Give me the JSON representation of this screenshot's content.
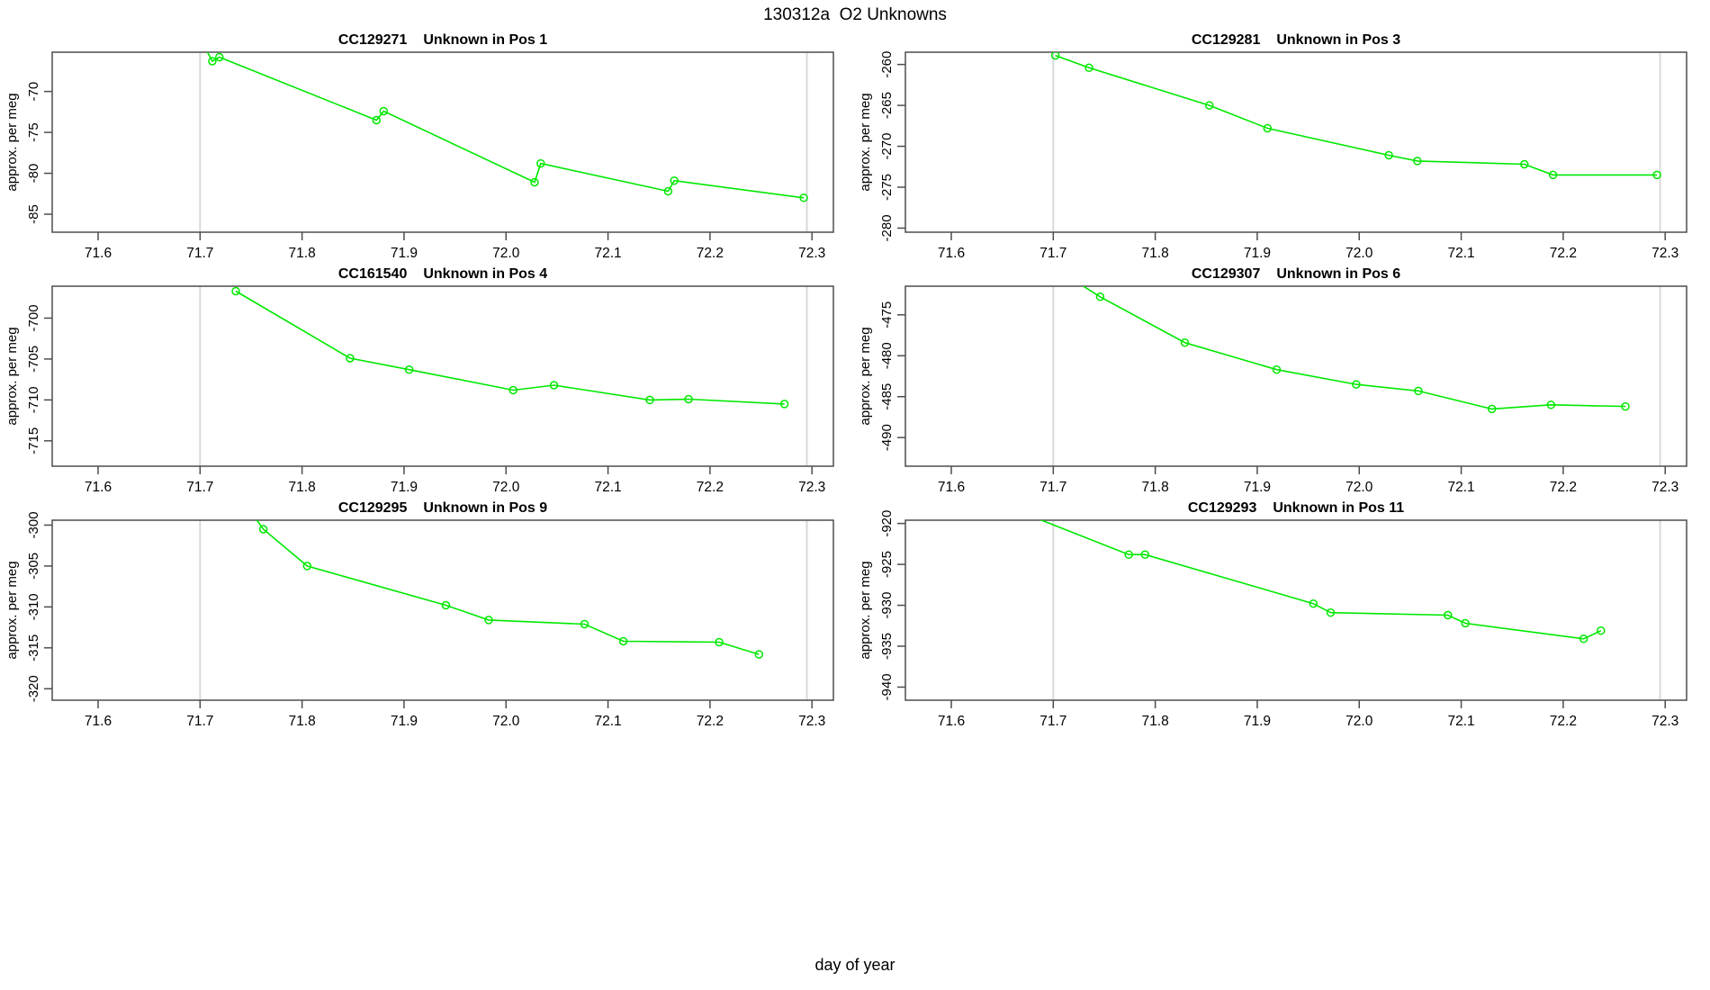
{
  "page_title": "130312a  O2 Unknowns",
  "shared": {
    "xlabel": "day of year",
    "ylabel": "approx. per meg",
    "line_color": "#00e800",
    "grid_color": "#d9d9d9",
    "axis_color": "#4d4d4d",
    "xlim": [
      71.555,
      72.321
    ],
    "x_tick_labels": [
      "71.6",
      "71.7",
      "71.8",
      "71.9",
      "72.0",
      "72.1",
      "72.2",
      "72.3"
    ],
    "vlines": [
      71.7,
      72.295
    ],
    "marker": "open-circle"
  },
  "chart_data": [
    {
      "type": "line",
      "sample_id": "CC129271",
      "title": "Unknown in Pos 1",
      "ylim": [
        -87.2,
        -65.2
      ],
      "y_tick_labels": [
        "-70",
        "-75",
        "-80",
        "-85"
      ],
      "entry_segment_from": [
        71.703,
        -64.2
      ],
      "points": [
        [
          71.712,
          -66.3
        ],
        [
          71.719,
          -65.8
        ],
        [
          71.873,
          -73.5
        ],
        [
          71.88,
          -72.4
        ],
        [
          72.028,
          -81.1
        ],
        [
          72.034,
          -78.8
        ],
        [
          72.159,
          -82.2
        ],
        [
          72.165,
          -80.9
        ],
        [
          72.292,
          -83.0
        ]
      ]
    },
    {
      "type": "line",
      "sample_id": "CC129281",
      "title": "Unknown in Pos 3",
      "ylim": [
        -280.5,
        -258.5
      ],
      "y_tick_labels": [
        "-260",
        "-265",
        "-270",
        "-275",
        "-280"
      ],
      "entry_segment_from": null,
      "points": [
        [
          71.702,
          -258.9
        ],
        [
          71.735,
          -260.4
        ],
        [
          71.853,
          -265.0
        ],
        [
          71.91,
          -267.8
        ],
        [
          72.029,
          -271.1
        ],
        [
          72.057,
          -271.8
        ],
        [
          72.162,
          -272.2
        ],
        [
          72.19,
          -273.5
        ],
        [
          72.292,
          -273.5
        ]
      ]
    },
    {
      "type": "line",
      "sample_id": "CC161540",
      "title": "Unknown in Pos 4",
      "ylim": [
        -718.1,
        -696.1
      ],
      "y_tick_labels": [
        "-700",
        "-705",
        "-710",
        "-715"
      ],
      "entry_segment_from": null,
      "points": [
        [
          71.735,
          -696.7
        ],
        [
          71.847,
          -704.9
        ],
        [
          71.905,
          -706.3
        ],
        [
          72.007,
          -708.8
        ],
        [
          72.047,
          -708.2
        ],
        [
          72.141,
          -710.0
        ],
        [
          72.179,
          -709.9
        ],
        [
          72.273,
          -710.5
        ]
      ]
    },
    {
      "type": "line",
      "sample_id": "CC129307",
      "title": "Unknown in Pos 6",
      "ylim": [
        -493.5,
        -471.5
      ],
      "y_tick_labels": [
        "-475",
        "-480",
        "-485",
        "-490"
      ],
      "entry_segment_from": [
        71.713,
        -470.2
      ],
      "points": [
        [
          71.746,
          -472.8
        ],
        [
          71.829,
          -478.4
        ],
        [
          71.919,
          -481.7
        ],
        [
          71.997,
          -483.5
        ],
        [
          72.058,
          -484.3
        ],
        [
          72.13,
          -486.5
        ],
        [
          72.188,
          -486.0
        ],
        [
          72.261,
          -486.2
        ]
      ]
    },
    {
      "type": "line",
      "sample_id": "CC129295",
      "title": "Unknown in Pos 9",
      "ylim": [
        -321.4,
        -299.4
      ],
      "y_tick_labels": [
        "-300",
        "-305",
        "-310",
        "-315",
        "-320"
      ],
      "entry_segment_from": [
        71.751,
        -298.6
      ],
      "points": [
        [
          71.762,
          -300.5
        ],
        [
          71.805,
          -305.0
        ],
        [
          71.941,
          -309.8
        ],
        [
          71.983,
          -311.6
        ],
        [
          72.077,
          -312.1
        ],
        [
          72.115,
          -314.2
        ],
        [
          72.209,
          -314.3
        ],
        [
          72.248,
          -315.8
        ]
      ]
    },
    {
      "type": "line",
      "sample_id": "CC129293",
      "title": "Unknown in Pos 11",
      "ylim": [
        -941.6,
        -919.6
      ],
      "y_tick_labels": [
        "-920",
        "-925",
        "-930",
        "-935",
        "-940"
      ],
      "entry_segment_from": [
        71.66,
        -918.2
      ],
      "points": [
        [
          71.774,
          -923.8
        ],
        [
          71.79,
          -923.8
        ],
        [
          71.955,
          -929.8
        ],
        [
          71.972,
          -930.9
        ],
        [
          72.087,
          -931.2
        ],
        [
          72.104,
          -932.2
        ],
        [
          72.22,
          -934.1
        ],
        [
          72.237,
          -933.1
        ]
      ]
    }
  ]
}
